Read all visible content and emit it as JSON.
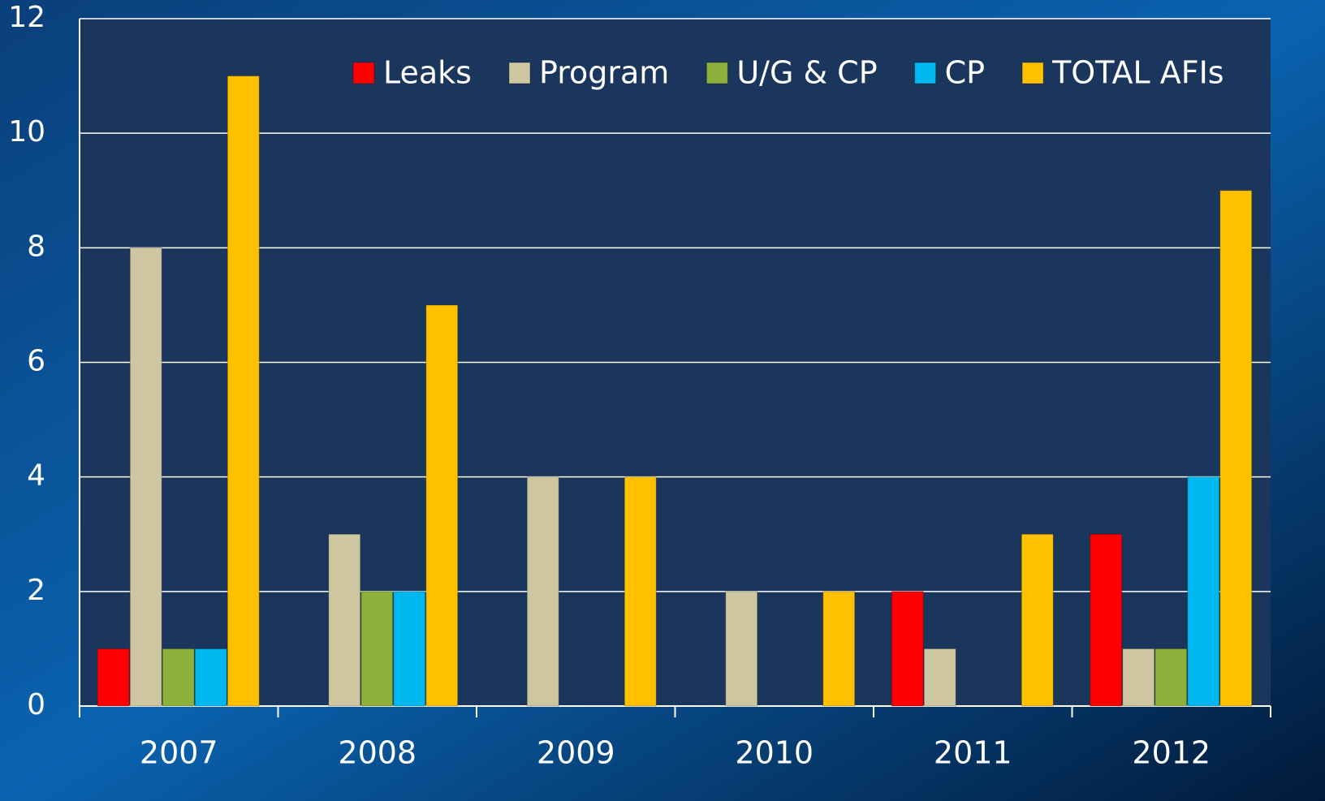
{
  "chart_data": {
    "type": "bar",
    "categories": [
      "2007",
      "2008",
      "2009",
      "2010",
      "2011",
      "2012"
    ],
    "series": [
      {
        "name": "Leaks",
        "color": "#ff0000",
        "values": [
          1,
          0,
          0,
          0,
          2,
          3
        ]
      },
      {
        "name": "Program",
        "color": "#cdc6a0",
        "values": [
          8,
          3,
          4,
          2,
          1,
          1
        ]
      },
      {
        "name": "U/G & CP",
        "color": "#8db03a",
        "values": [
          1,
          2,
          0,
          0,
          0,
          1
        ]
      },
      {
        "name": "CP",
        "color": "#00b8f0",
        "values": [
          1,
          2,
          0,
          0,
          0,
          4
        ]
      },
      {
        "name": "TOTAL AFIs",
        "color": "#ffc000",
        "values": [
          11,
          7,
          4,
          2,
          3,
          9
        ]
      }
    ],
    "ylim": [
      0,
      12
    ],
    "yticks": [
      0,
      2,
      4,
      6,
      8,
      10,
      12
    ],
    "grid": true,
    "legend": "top"
  }
}
